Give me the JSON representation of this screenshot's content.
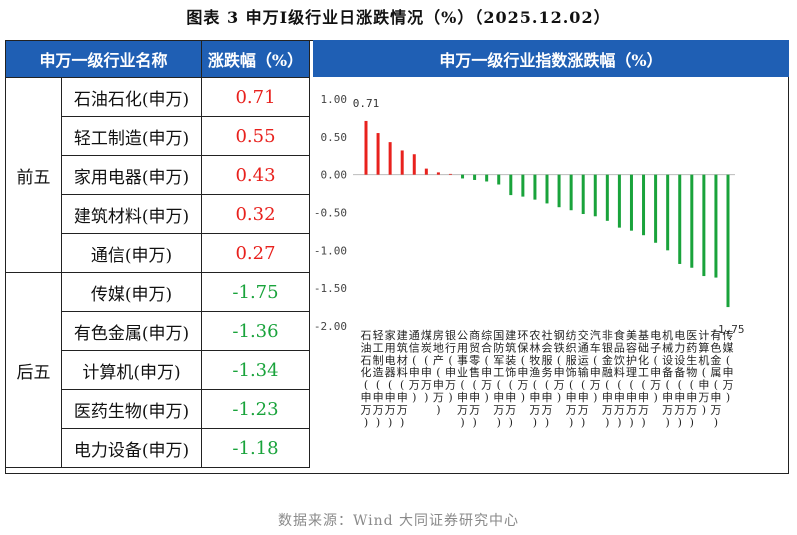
{
  "title": "图表 3 申万Ⅰ级行业日涨跌情况（%）（2025.12.02）",
  "table": {
    "header_name": "申万一级行业名称",
    "header_pct": "涨跌幅（%）",
    "groups": [
      {
        "label": "前五",
        "rows": [
          {
            "name": "石油石化(申万)",
            "value": "0.71"
          },
          {
            "name": "轻工制造(申万)",
            "value": "0.55"
          },
          {
            "name": "家用电器(申万)",
            "value": "0.43"
          },
          {
            "name": "建筑材料(申万)",
            "value": "0.32"
          },
          {
            "name": "通信(申万)",
            "value": "0.27"
          }
        ]
      },
      {
        "label": "后五",
        "rows": [
          {
            "name": "传媒(申万)",
            "value": "-1.75"
          },
          {
            "name": "有色金属(申万)",
            "value": "-1.36"
          },
          {
            "name": "计算机(申万)",
            "value": "-1.34"
          },
          {
            "name": "医药生物(申万)",
            "value": "-1.23"
          },
          {
            "name": "电力设备(申万)",
            "value": "-1.18"
          }
        ]
      }
    ]
  },
  "chart_header": "申万一级行业指数涨跌幅（%）",
  "chart_data": {
    "type": "bar",
    "ylim": [
      -2.0,
      1.0
    ],
    "yticks": [
      "1.00",
      "0.50",
      "0.00",
      "-0.50",
      "-1.00",
      "-1.50",
      "-2.00"
    ],
    "grid": false,
    "legend": "none",
    "colors": {
      "positive": "#e8211d",
      "negative": "#19a33b"
    },
    "categories": [
      "石油石化(申万)",
      "轻工制造(申万)",
      "家用电器(申万)",
      "建筑材料(申万)",
      "通信(申万)",
      "煤炭(申万)",
      "房地产(申万)",
      "银行(申万)",
      "公用事业(申万)",
      "商贸零售(申万)",
      "综合(申万)",
      "国防军工(申万)",
      "建筑装饰(申万)",
      "环保(申万)",
      "农林牧渔(申万)",
      "社会服务(申万)",
      "钢铁(申万)",
      "纺织服饰(申万)",
      "交通运输(申万)",
      "汽车(申万)",
      "非银金融(申万)",
      "食品饮料(申万)",
      "美容护理(申万)",
      "基础化工(申万)",
      "电子(申万)",
      "机械设备(申万)",
      "电力设备(申万)",
      "医药生物(申万)",
      "计算机(申万)",
      "有色金属(申万)",
      "传媒(申万)"
    ],
    "values": [
      0.71,
      0.55,
      0.43,
      0.32,
      0.27,
      0.08,
      0.03,
      0.01,
      -0.05,
      -0.07,
      -0.09,
      -0.13,
      -0.27,
      -0.29,
      -0.33,
      -0.38,
      -0.43,
      -0.47,
      -0.52,
      -0.55,
      -0.61,
      -0.7,
      -0.74,
      -0.8,
      -0.9,
      -1.0,
      -1.18,
      -1.23,
      -1.34,
      -1.36,
      -1.75
    ],
    "data_labels": [
      {
        "index": 0,
        "text": "0.71"
      },
      {
        "index": 30,
        "text": "-1.75"
      }
    ]
  },
  "source": "数据来源：Wind 大同证券研究中心"
}
